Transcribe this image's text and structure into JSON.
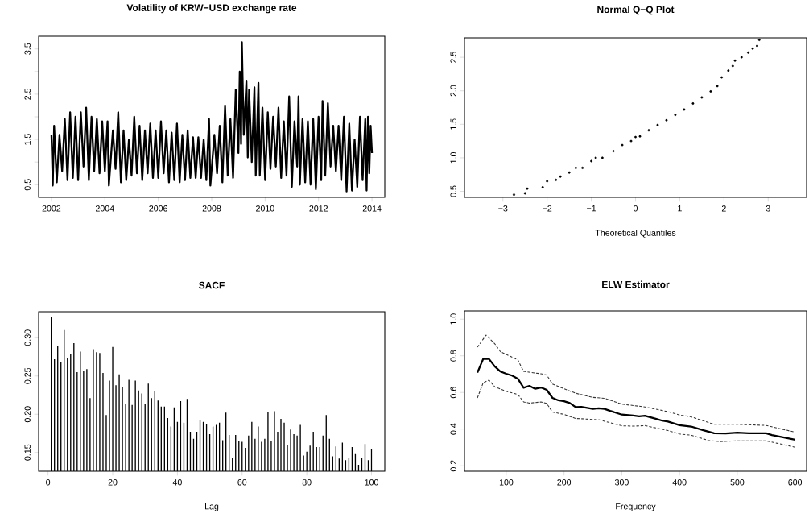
{
  "chart_data": [
    {
      "type": "line",
      "title": "Volatility of KRW−USD exchange rate",
      "color": "#000000",
      "x": [
        2002.0,
        2002.05,
        2002.1,
        2002.2,
        2002.3,
        2002.4,
        2002.5,
        2002.6,
        2002.7,
        2002.8,
        2002.9,
        2003.0,
        2003.1,
        2003.2,
        2003.3,
        2003.4,
        2003.5,
        2003.6,
        2003.7,
        2003.8,
        2003.9,
        2004.0,
        2004.1,
        2004.15,
        2004.3,
        2004.4,
        2004.5,
        2004.6,
        2004.7,
        2004.8,
        2004.9,
        2005.0,
        2005.1,
        2005.2,
        2005.3,
        2005.4,
        2005.5,
        2005.6,
        2005.7,
        2005.8,
        2005.9,
        2006.0,
        2006.1,
        2006.2,
        2006.3,
        2006.4,
        2006.5,
        2006.6,
        2006.7,
        2006.8,
        2006.9,
        2007.0,
        2007.1,
        2007.2,
        2007.3,
        2007.4,
        2007.5,
        2007.6,
        2007.7,
        2007.8,
        2007.9,
        2007.95,
        2008.1,
        2008.2,
        2008.3,
        2008.4,
        2008.5,
        2008.6,
        2008.7,
        2008.8,
        2008.9,
        2009.0,
        2009.05,
        2009.1,
        2009.13,
        2009.2,
        2009.3,
        2009.35,
        2009.4,
        2009.5,
        2009.6,
        2009.65,
        2009.75,
        2009.8,
        2009.9,
        2010.0,
        2010.1,
        2010.2,
        2010.3,
        2010.4,
        2010.5,
        2010.6,
        2010.7,
        2010.8,
        2010.9,
        2011.0,
        2011.1,
        2011.2,
        2011.25,
        2011.3,
        2011.4,
        2011.5,
        2011.6,
        2011.7,
        2011.8,
        2011.9,
        2012.0,
        2012.1,
        2012.15,
        2012.25,
        2012.35,
        2012.45,
        2012.55,
        2012.65,
        2012.75,
        2012.85,
        2012.95,
        2013.05,
        2013.15,
        2013.25,
        2013.35,
        2013.45,
        2013.55,
        2013.65,
        2013.75,
        2013.8,
        2013.85,
        2013.9,
        2013.95,
        2014.0
      ],
      "values": [
        1.6,
        0.48,
        1.8,
        0.55,
        1.6,
        0.8,
        1.95,
        0.6,
        2.1,
        0.65,
        2.0,
        0.6,
        2.1,
        0.9,
        2.2,
        0.6,
        2.0,
        0.8,
        1.95,
        0.75,
        1.9,
        0.8,
        1.9,
        0.48,
        1.7,
        0.85,
        2.1,
        0.55,
        1.7,
        0.6,
        1.5,
        0.7,
        2.0,
        0.75,
        1.8,
        0.6,
        1.7,
        0.75,
        1.85,
        0.65,
        1.7,
        0.65,
        1.9,
        0.75,
        1.7,
        0.55,
        1.65,
        0.6,
        1.85,
        0.55,
        1.6,
        0.6,
        1.7,
        0.65,
        1.55,
        0.65,
        1.55,
        0.65,
        1.5,
        0.6,
        1.95,
        0.48,
        1.6,
        0.75,
        1.8,
        0.55,
        2.25,
        0.7,
        1.95,
        0.65,
        2.6,
        1.2,
        3.0,
        1.4,
        3.65,
        1.6,
        2.8,
        1.1,
        2.6,
        1.0,
        2.65,
        0.7,
        2.75,
        0.7,
        2.2,
        0.6,
        2.1,
        0.85,
        2.0,
        0.9,
        2.2,
        0.65,
        1.9,
        0.7,
        2.45,
        0.45,
        1.9,
        0.9,
        2.45,
        0.5,
        1.95,
        0.55,
        1.9,
        0.5,
        1.95,
        0.4,
        2.0,
        0.6,
        2.35,
        0.7,
        2.3,
        0.9,
        1.8,
        0.8,
        1.8,
        0.6,
        2.0,
        0.35,
        1.85,
        0.37,
        1.5,
        0.45,
        2.0,
        0.6,
        1.95,
        0.37,
        2.0,
        0.75,
        1.8,
        1.2
      ],
      "xlim": [
        2001.52,
        2014.48
      ],
      "ylim": [
        0.22,
        3.78
      ],
      "xticks": [
        2002,
        2004,
        2006,
        2008,
        2010,
        2012,
        2014
      ],
      "yticks": [
        0.5,
        {
          "value": 1,
          "label": null
        },
        1.5,
        {
          "value": 2,
          "label": null
        },
        2.5,
        {
          "value": 3,
          "label": null
        },
        3.5
      ]
    },
    {
      "type": "scatter",
      "title": "Normal Q−Q Plot",
      "xlabel": "Theoretical Quantiles",
      "color": "#000000",
      "marker": "circle",
      "x": [
        -2.75,
        -2.5,
        -2.45,
        -2.1,
        -2.0,
        -1.8,
        -1.7,
        -1.5,
        -1.35,
        -1.2,
        -1.0,
        -0.9,
        -0.75,
        -0.5,
        -0.3,
        -0.1,
        0,
        0.1,
        0.3,
        0.5,
        0.7,
        0.9,
        1.1,
        1.3,
        1.5,
        1.7,
        1.85,
        1.95,
        2.1,
        2.2,
        2.25,
        2.4,
        2.55,
        2.65,
        2.75,
        2.8
      ],
      "values": [
        0.45,
        0.47,
        0.54,
        0.56,
        0.65,
        0.67,
        0.72,
        0.78,
        0.85,
        0.85,
        0.95,
        1.0,
        1.0,
        1.1,
        1.19,
        1.25,
        1.31,
        1.32,
        1.41,
        1.49,
        1.56,
        1.64,
        1.72,
        1.81,
        1.9,
        1.99,
        2.07,
        2.2,
        2.3,
        2.37,
        2.45,
        2.5,
        2.57,
        2.63,
        2.67,
        2.76
      ],
      "xlim": [
        -3.87,
        3.87
      ],
      "ylim": [
        0.41,
        2.79
      ],
      "xticks": [
        {
          "value": -3,
          "label": "−3"
        },
        {
          "value": -2,
          "label": "−2"
        },
        {
          "value": -1,
          "label": "−1"
        },
        0,
        1,
        2,
        3
      ],
      "yticks": [
        0.5,
        {
          "value": 1,
          "label": "1.0"
        },
        1.5,
        {
          "value": 2,
          "label": "2.0"
        },
        2.5
      ]
    },
    {
      "type": "bar",
      "title": "SACF",
      "xlabel": "Lag",
      "color": "#000000",
      "x": [
        1,
        2,
        3,
        4,
        5,
        6,
        7,
        8,
        9,
        10,
        11,
        12,
        13,
        14,
        15,
        16,
        17,
        18,
        19,
        20,
        21,
        22,
        23,
        24,
        25,
        26,
        27,
        28,
        29,
        30,
        31,
        32,
        33,
        34,
        35,
        36,
        37,
        38,
        39,
        40,
        41,
        42,
        43,
        44,
        45,
        46,
        47,
        48,
        49,
        50,
        51,
        52,
        53,
        54,
        55,
        56,
        57,
        58,
        59,
        60,
        61,
        62,
        63,
        64,
        65,
        66,
        67,
        68,
        69,
        70,
        71,
        72,
        73,
        74,
        75,
        76,
        77,
        78,
        79,
        80,
        81,
        82,
        83,
        84,
        85,
        86,
        87,
        88,
        89,
        90,
        91,
        92,
        93,
        94,
        95,
        96,
        97,
        98,
        99,
        100
      ],
      "values": [
        0.327,
        0.272,
        0.289,
        0.268,
        0.31,
        0.274,
        0.279,
        0.293,
        0.255,
        0.282,
        0.257,
        0.259,
        0.221,
        0.285,
        0.281,
        0.28,
        0.254,
        0.199,
        0.244,
        0.288,
        0.238,
        0.252,
        0.235,
        0.214,
        0.245,
        0.212,
        0.244,
        0.231,
        0.227,
        0.214,
        0.24,
        0.221,
        0.23,
        0.218,
        0.21,
        0.21,
        0.195,
        0.184,
        0.209,
        0.19,
        0.217,
        0.189,
        0.22,
        0.177,
        0.168,
        0.177,
        0.193,
        0.19,
        0.187,
        0.174,
        0.184,
        0.186,
        0.189,
        0.166,
        0.202,
        0.173,
        0.143,
        0.173,
        0.165,
        0.164,
        0.156,
        0.172,
        0.19,
        0.168,
        0.184,
        0.164,
        0.168,
        0.203,
        0.165,
        0.204,
        0.177,
        0.194,
        0.189,
        0.16,
        0.18,
        0.174,
        0.172,
        0.186,
        0.146,
        0.151,
        0.159,
        0.177,
        0.157,
        0.157,
        0.172,
        0.199,
        0.168,
        0.145,
        0.158,
        0.142,
        0.163,
        0.14,
        0.143,
        0.157,
        0.148,
        0.134,
        0.143,
        0.161,
        0.14,
        0.155
      ],
      "xlim": [
        -2.9,
        104.1
      ],
      "ylim": [
        0.1255,
        0.334
      ],
      "xticks": [
        0,
        20,
        40,
        60,
        80,
        100
      ],
      "yticks": [
        {
          "value": 0.15,
          "label": "0.15"
        },
        {
          "value": 0.2,
          "label": "0.20"
        },
        {
          "value": 0.25,
          "label": "0.25"
        },
        {
          "value": 0.3,
          "label": "0.30"
        }
      ]
    },
    {
      "type": "line",
      "title": "ELW Estimator",
      "xlabel": "Frequency",
      "series": [
        {
          "color": "#000000",
          "line_style": "solid",
          "x": [
            50,
            60,
            70,
            80,
            90,
            100,
            110,
            120,
            130,
            140,
            150,
            160,
            170,
            180,
            190,
            200,
            210,
            220,
            230,
            250,
            260,
            270,
            280,
            300,
            320,
            330,
            340,
            360,
            370,
            380,
            400,
            420,
            440,
            460,
            480,
            500,
            520,
            550,
            560,
            600
          ],
          "values": [
            0.708,
            0.783,
            0.783,
            0.742,
            0.714,
            0.702,
            0.692,
            0.675,
            0.626,
            0.636,
            0.62,
            0.627,
            0.614,
            0.57,
            0.557,
            0.552,
            0.542,
            0.52,
            0.521,
            0.51,
            0.514,
            0.51,
            0.499,
            0.479,
            0.474,
            0.47,
            0.473,
            0.455,
            0.446,
            0.441,
            0.421,
            0.414,
            0.395,
            0.377,
            0.376,
            0.38,
            0.377,
            0.377,
            0.367,
            0.342
          ]
        },
        {
          "color": "#333333",
          "line_style": "dashed",
          "x": [
            50,
            65,
            80,
            90,
            120,
            130,
            160,
            170,
            180,
            200,
            220,
            250,
            270,
            300,
            340,
            380,
            400,
            420,
            460,
            500,
            550,
            600
          ],
          "values": [
            0.847,
            0.913,
            0.866,
            0.822,
            0.778,
            0.715,
            0.702,
            0.695,
            0.646,
            0.62,
            0.596,
            0.573,
            0.568,
            0.536,
            0.521,
            0.495,
            0.477,
            0.467,
            0.426,
            0.426,
            0.42,
            0.383
          ]
        },
        {
          "color": "#333333",
          "line_style": "dashed",
          "x": [
            50,
            60,
            70,
            80,
            100,
            120,
            130,
            140,
            160,
            170,
            180,
            200,
            220,
            260,
            270,
            300,
            320,
            340,
            380,
            400,
            420,
            450,
            470,
            500,
            550,
            600
          ],
          "values": [
            0.57,
            0.653,
            0.667,
            0.631,
            0.606,
            0.589,
            0.548,
            0.542,
            0.548,
            0.54,
            0.493,
            0.48,
            0.458,
            0.451,
            0.443,
            0.418,
            0.416,
            0.419,
            0.392,
            0.373,
            0.367,
            0.338,
            0.332,
            0.336,
            0.336,
            0.301
          ]
        }
      ],
      "xlim": [
        27.6,
        620
      ],
      "ylim": [
        0.17,
        1.045
      ],
      "xticks": [
        100,
        200,
        300,
        400,
        500,
        600
      ],
      "yticks": [
        0.2,
        0.4,
        0.6,
        0.8,
        {
          "value": 1,
          "label": "1.0"
        }
      ]
    }
  ]
}
